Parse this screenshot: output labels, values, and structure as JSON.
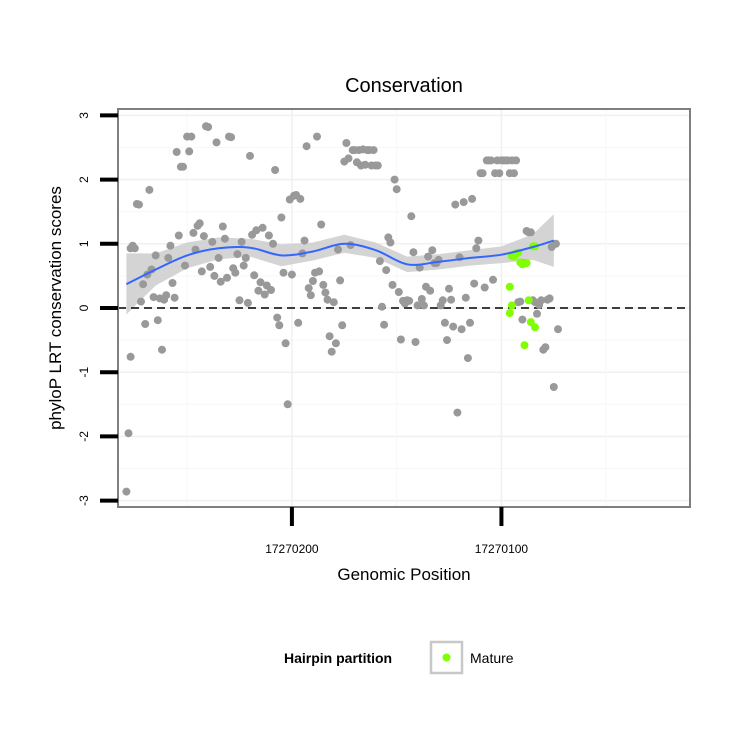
{
  "chart_data": {
    "type": "scatter",
    "title": "Conservation",
    "xlabel": "Genomic Position",
    "ylabel": "phyloP LRT conservation scores",
    "x_reversed": true,
    "xlim": [
      17270283,
      17270010
    ],
    "ylim": [
      -3.1,
      3.1
    ],
    "x_ticks": [
      17270200,
      17270100
    ],
    "y_ticks": [
      -3,
      -2,
      -1,
      0,
      1,
      2,
      3
    ],
    "reference_line": {
      "y": 0,
      "style": "dashed"
    },
    "legend": {
      "title": "Hairpin partition",
      "position": "bottom",
      "entries": [
        {
          "label": "Mature",
          "color": "#7fff00"
        }
      ]
    },
    "colors": {
      "background_points": "#999999",
      "mature_points": "#7fff00",
      "smooth_line": "#3366ff",
      "confidence_band": "#cccccc"
    },
    "series": [
      {
        "color": "#999999",
        "points": [
          [
            17270279,
            -2.86
          ],
          [
            17270278,
            -1.95
          ],
          [
            17270277,
            -0.76
          ],
          [
            17270277,
            0.93
          ],
          [
            17270276,
            0.97
          ],
          [
            17270275,
            0.93
          ],
          [
            17270274,
            1.62
          ],
          [
            17270273,
            1.61
          ],
          [
            17270272,
            0.1
          ],
          [
            17270271,
            0.37
          ],
          [
            17270270,
            -0.25
          ],
          [
            17270269,
            0.52
          ],
          [
            17270268,
            1.84
          ],
          [
            17270267,
            0.6
          ],
          [
            17270266,
            0.17
          ],
          [
            17270265,
            0.82
          ],
          [
            17270264,
            -0.19
          ],
          [
            17270263,
            0.15
          ],
          [
            17270262,
            -0.65
          ],
          [
            17270261,
            0.13
          ],
          [
            17270260,
            0.2
          ],
          [
            17270259,
            0.78
          ],
          [
            17270258,
            0.97
          ],
          [
            17270257,
            0.39
          ],
          [
            17270256,
            0.16
          ],
          [
            17270255,
            2.43
          ],
          [
            17270254,
            1.13
          ],
          [
            17270253,
            2.2
          ],
          [
            17270252,
            2.2
          ],
          [
            17270251,
            0.66
          ],
          [
            17270250,
            2.67
          ],
          [
            17270249,
            2.44
          ],
          [
            17270248,
            2.67
          ],
          [
            17270247,
            1.17
          ],
          [
            17270246,
            0.91
          ],
          [
            17270245,
            1.28
          ],
          [
            17270244,
            1.32
          ],
          [
            17270243,
            0.57
          ],
          [
            17270242,
            1.12
          ],
          [
            17270241,
            2.83
          ],
          [
            17270240,
            2.82
          ],
          [
            17270239,
            0.64
          ],
          [
            17270238,
            1.03
          ],
          [
            17270237,
            0.5
          ],
          [
            17270236,
            2.58
          ],
          [
            17270235,
            0.78
          ],
          [
            17270234,
            0.41
          ],
          [
            17270233,
            1.27
          ],
          [
            17270232,
            1.08
          ],
          [
            17270231,
            0.47
          ],
          [
            17270230,
            2.67
          ],
          [
            17270229,
            2.66
          ],
          [
            17270228,
            0.62
          ],
          [
            17270227,
            0.55
          ],
          [
            17270226,
            0.84
          ],
          [
            17270225,
            0.12
          ],
          [
            17270224,
            1.03
          ],
          [
            17270223,
            0.66
          ],
          [
            17270222,
            0.78
          ],
          [
            17270221,
            0.08
          ],
          [
            17270220,
            2.37
          ],
          [
            17270219,
            1.14
          ],
          [
            17270218,
            0.51
          ],
          [
            17270217,
            1.21
          ],
          [
            17270216,
            0.27
          ],
          [
            17270215,
            0.4
          ],
          [
            17270214,
            1.25
          ],
          [
            17270213,
            0.21
          ],
          [
            17270212,
            0.35
          ],
          [
            17270211,
            1.13
          ],
          [
            17270210,
            0.28
          ],
          [
            17270209,
            1.0
          ],
          [
            17270208,
            2.15
          ],
          [
            17270207,
            -0.15
          ],
          [
            17270206,
            -0.27
          ],
          [
            17270205,
            1.41
          ],
          [
            17270204,
            0.55
          ],
          [
            17270203,
            -0.55
          ],
          [
            17270202,
            -1.5
          ],
          [
            17270201,
            1.69
          ],
          [
            17270200,
            0.52
          ],
          [
            17270199,
            1.75
          ],
          [
            17270198,
            1.76
          ],
          [
            17270197,
            -0.23
          ],
          [
            17270196,
            1.7
          ],
          [
            17270195,
            0.85
          ],
          [
            17270194,
            1.05
          ],
          [
            17270193,
            2.52
          ],
          [
            17270192,
            0.31
          ],
          [
            17270191,
            0.2
          ],
          [
            17270190,
            0.42
          ],
          [
            17270189,
            0.55
          ],
          [
            17270188,
            2.67
          ],
          [
            17270187,
            0.57
          ],
          [
            17270186,
            1.3
          ],
          [
            17270185,
            0.36
          ],
          [
            17270184,
            0.24
          ],
          [
            17270183,
            0.13
          ],
          [
            17270182,
            -0.44
          ],
          [
            17270181,
            -0.68
          ],
          [
            17270180,
            0.09
          ],
          [
            17270179,
            -0.55
          ],
          [
            17270178,
            0.91
          ],
          [
            17270177,
            0.43
          ],
          [
            17270176,
            -0.27
          ],
          [
            17270175,
            2.28
          ],
          [
            17270174,
            2.57
          ],
          [
            17270173,
            2.33
          ],
          [
            17270172,
            0.98
          ],
          [
            17270171,
            2.46
          ],
          [
            17270170,
            2.46
          ],
          [
            17270169,
            2.27
          ],
          [
            17270168,
            2.46
          ],
          [
            17270167,
            2.22
          ],
          [
            17270166,
            2.47
          ],
          [
            17270165,
            2.23
          ],
          [
            17270164,
            2.46
          ],
          [
            17270163,
            2.46
          ],
          [
            17270162,
            2.22
          ],
          [
            17270161,
            2.46
          ],
          [
            17270160,
            2.22
          ],
          [
            17270159,
            2.22
          ],
          [
            17270158,
            0.73
          ],
          [
            17270157,
            0.02
          ],
          [
            17270156,
            -0.26
          ],
          [
            17270155,
            0.59
          ],
          [
            17270154,
            1.1
          ],
          [
            17270153,
            1.02
          ],
          [
            17270152,
            0.36
          ],
          [
            17270151,
            2.0
          ],
          [
            17270150,
            1.85
          ],
          [
            17270149,
            0.25
          ],
          [
            17270148,
            -0.49
          ],
          [
            17270147,
            0.11
          ],
          [
            17270146,
            0.07
          ],
          [
            17270145,
            0.12
          ],
          [
            17270144,
            0.11
          ],
          [
            17270143,
            1.43
          ],
          [
            17270142,
            0.87
          ],
          [
            17270141,
            -0.53
          ],
          [
            17270140,
            0.04
          ],
          [
            17270139,
            0.63
          ],
          [
            17270138,
            0.14
          ],
          [
            17270137,
            0.04
          ],
          [
            17270136,
            0.33
          ],
          [
            17270135,
            0.8
          ],
          [
            17270134,
            0.27
          ],
          [
            17270133,
            0.9
          ],
          [
            17270132,
            0.7
          ],
          [
            17270131,
            0.7
          ],
          [
            17270130,
            0.75
          ],
          [
            17270129,
            0.04
          ],
          [
            17270128,
            0.12
          ],
          [
            17270127,
            -0.23
          ],
          [
            17270126,
            -0.5
          ],
          [
            17270125,
            0.3
          ],
          [
            17270124,
            0.13
          ],
          [
            17270123,
            -0.29
          ],
          [
            17270122,
            1.61
          ],
          [
            17270121,
            -1.63
          ],
          [
            17270120,
            0.79
          ],
          [
            17270119,
            -0.33
          ],
          [
            17270118,
            1.65
          ],
          [
            17270117,
            0.16
          ],
          [
            17270116,
            -0.78
          ],
          [
            17270115,
            -0.23
          ],
          [
            17270114,
            1.7
          ],
          [
            17270113,
            0.38
          ],
          [
            17270112,
            0.93
          ],
          [
            17270111,
            1.05
          ],
          [
            17270110,
            2.1
          ],
          [
            17270109,
            2.1
          ],
          [
            17270108,
            0.32
          ],
          [
            17270107,
            2.3
          ],
          [
            17270106,
            2.3
          ],
          [
            17270105,
            2.3
          ],
          [
            17270104,
            0.44
          ],
          [
            17270103,
            2.1
          ],
          [
            17270102,
            2.3
          ],
          [
            17270101,
            2.1
          ],
          [
            17270100,
            2.3
          ],
          [
            17270099,
            2.3
          ],
          [
            17270098,
            2.3
          ],
          [
            17270097,
            2.3
          ],
          [
            17270096,
            2.1
          ],
          [
            17270095,
            2.3
          ],
          [
            17270094,
            2.1
          ],
          [
            17270093,
            2.3
          ],
          [
            17270092,
            0.09
          ],
          [
            17270091,
            0.1
          ],
          [
            17270090,
            -0.18
          ],
          [
            17270089,
            0.7
          ],
          [
            17270088,
            1.2
          ],
          [
            17270087,
            1.18
          ],
          [
            17270086,
            1.18
          ],
          [
            17270085,
            0.12
          ],
          [
            17270084,
            0.09
          ],
          [
            17270083,
            -0.09
          ],
          [
            17270082,
            0.05
          ],
          [
            17270081,
            0.12
          ],
          [
            17270080,
            -0.65
          ],
          [
            17270079,
            -0.61
          ],
          [
            17270078,
            0.13
          ],
          [
            17270077,
            0.15
          ],
          [
            17270076,
            0.95
          ],
          [
            17270075,
            -1.23
          ],
          [
            17270074,
            1.0
          ],
          [
            17270073,
            -0.33
          ]
        ]
      },
      {
        "name": "Mature",
        "color": "#7fff00",
        "points": [
          [
            17270095,
            0.81
          ],
          [
            17270096,
            0.33
          ],
          [
            17270095,
            0.04
          ],
          [
            17270096,
            -0.08
          ],
          [
            17270094,
            0.8
          ],
          [
            17270093,
            0.85
          ],
          [
            17270092,
            0.86
          ],
          [
            17270091,
            0.71
          ],
          [
            17270090,
            0.68
          ],
          [
            17270089,
            -0.58
          ],
          [
            17270088,
            0.7
          ],
          [
            17270087,
            0.12
          ],
          [
            17270086,
            -0.22
          ],
          [
            17270085,
            0.96
          ],
          [
            17270084,
            0.96
          ],
          [
            17270084,
            -0.3
          ]
        ]
      }
    ],
    "smooth": {
      "x": [
        17270279,
        17270265,
        17270250,
        17270235,
        17270220,
        17270205,
        17270190,
        17270175,
        17270160,
        17270145,
        17270130,
        17270115,
        17270100,
        17270085,
        17270075
      ],
      "y": [
        0.37,
        0.6,
        0.82,
        0.93,
        0.94,
        0.82,
        0.88,
        1.0,
        0.9,
        0.68,
        0.72,
        0.78,
        0.83,
        0.95,
        1.05
      ],
      "lower": [
        -0.1,
        0.35,
        0.62,
        0.76,
        0.8,
        0.65,
        0.74,
        0.86,
        0.78,
        0.56,
        0.6,
        0.66,
        0.7,
        0.75,
        0.64
      ],
      "upper": [
        0.85,
        0.85,
        1.02,
        1.1,
        1.08,
        0.99,
        1.02,
        1.14,
        1.02,
        0.8,
        0.84,
        0.9,
        0.96,
        1.15,
        1.46
      ]
    }
  }
}
